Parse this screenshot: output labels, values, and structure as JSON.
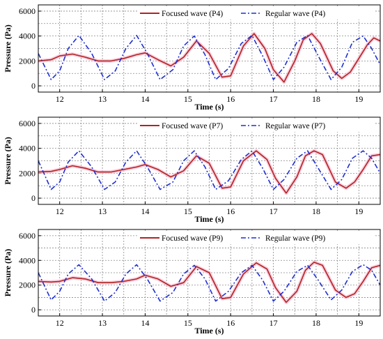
{
  "chart_data": [
    {
      "type": "line",
      "xlabel": "Time (s)",
      "ylabel": "Pressure (Pa)",
      "xlim": [
        11.5,
        19.5
      ],
      "ylim": [
        -500,
        6500
      ],
      "x_ticks": [
        12,
        13,
        14,
        15,
        16,
        17,
        18,
        19
      ],
      "y_ticks": [
        0,
        2000,
        4000,
        6000
      ],
      "grid": true,
      "legend_position": "top-right",
      "series": [
        {
          "name": "Focused wave (P4)",
          "color": "#b22222",
          "style": "solid",
          "x": [
            11.5,
            11.8,
            12.0,
            12.3,
            12.6,
            12.9,
            13.2,
            13.5,
            13.8,
            14.0,
            14.3,
            14.6,
            14.9,
            15.2,
            15.5,
            15.8,
            16.0,
            16.3,
            16.55,
            16.8,
            17.0,
            17.25,
            17.5,
            17.7,
            17.9,
            18.1,
            18.4,
            18.6,
            18.8,
            19.0,
            19.2,
            19.35,
            19.5
          ],
          "values": [
            2000,
            2100,
            2400,
            2550,
            2300,
            2000,
            2000,
            2200,
            2500,
            2650,
            2100,
            1600,
            2300,
            3600,
            2600,
            700,
            800,
            3200,
            4200,
            3000,
            1300,
            300,
            2000,
            3700,
            4200,
            3400,
            1200,
            600,
            1100,
            2200,
            3300,
            3850,
            3600
          ]
        },
        {
          "name": "Regular wave (P4)",
          "color": "#1f2fd0",
          "style": "dashdot",
          "x": [
            11.5,
            11.8,
            12.0,
            12.2,
            12.45,
            12.75,
            13.05,
            13.3,
            13.55,
            13.8,
            14.05,
            14.35,
            14.65,
            14.9,
            15.15,
            15.4,
            15.65,
            15.95,
            16.25,
            16.5,
            16.75,
            17.0,
            17.25,
            17.55,
            17.8,
            18.05,
            18.35,
            18.6,
            18.85,
            19.1,
            19.3,
            19.5
          ],
          "values": [
            2600,
            500,
            1200,
            3000,
            4050,
            2600,
            500,
            1200,
            3000,
            4050,
            2600,
            500,
            1300,
            3200,
            4000,
            2500,
            500,
            1400,
            3400,
            4050,
            2400,
            500,
            1500,
            3500,
            4050,
            2400,
            500,
            1500,
            3500,
            4000,
            3000,
            1700
          ]
        }
      ]
    },
    {
      "type": "line",
      "xlabel": "Time (s)",
      "ylabel": "Pressure (Pa)",
      "xlim": [
        11.5,
        19.5
      ],
      "ylim": [
        -500,
        6500
      ],
      "x_ticks": [
        12,
        13,
        14,
        15,
        16,
        17,
        18,
        19
      ],
      "y_ticks": [
        0,
        2000,
        4000,
        6000
      ],
      "grid": true,
      "legend_position": "top-right",
      "series": [
        {
          "name": "Focused wave (P7)",
          "color": "#b22222",
          "style": "solid",
          "x": [
            11.5,
            11.8,
            12.0,
            12.3,
            12.6,
            12.9,
            13.2,
            13.5,
            13.8,
            14.0,
            14.3,
            14.6,
            14.9,
            15.2,
            15.5,
            15.8,
            16.0,
            16.3,
            16.6,
            16.85,
            17.05,
            17.3,
            17.55,
            17.75,
            17.95,
            18.15,
            18.45,
            18.7,
            18.9,
            19.1,
            19.3,
            19.5
          ],
          "values": [
            2100,
            2150,
            2300,
            2600,
            2400,
            2100,
            2100,
            2300,
            2500,
            2700,
            2300,
            1700,
            2200,
            3400,
            2800,
            800,
            900,
            3000,
            3800,
            3100,
            1600,
            400,
            1700,
            3400,
            3800,
            3500,
            1300,
            800,
            1300,
            2300,
            3400,
            3500
          ]
        },
        {
          "name": "Regular wave (P7)",
          "color": "#1f2fd0",
          "style": "dashdot",
          "x": [
            11.5,
            11.8,
            12.0,
            12.2,
            12.45,
            12.75,
            13.05,
            13.3,
            13.55,
            13.8,
            14.05,
            14.35,
            14.65,
            14.9,
            15.15,
            15.4,
            15.65,
            15.95,
            16.25,
            16.5,
            16.75,
            17.0,
            17.25,
            17.55,
            17.8,
            18.05,
            18.35,
            18.6,
            18.85,
            19.1,
            19.3,
            19.5
          ],
          "values": [
            3000,
            700,
            1300,
            2900,
            3800,
            2500,
            700,
            1300,
            2900,
            3800,
            2500,
            700,
            1300,
            3000,
            3800,
            2500,
            700,
            1400,
            3100,
            3800,
            2400,
            700,
            1500,
            3200,
            3800,
            2400,
            700,
            1500,
            3200,
            3800,
            3200,
            2000
          ]
        }
      ]
    },
    {
      "type": "line",
      "xlabel": "Time (s)",
      "ylabel": "Pressure (Pa)",
      "xlim": [
        11.5,
        19.5
      ],
      "ylim": [
        -500,
        6500
      ],
      "x_ticks": [
        12,
        13,
        14,
        15,
        16,
        17,
        18,
        19
      ],
      "y_ticks": [
        0,
        2000,
        4000,
        6000
      ],
      "grid": true,
      "legend_position": "top-right",
      "series": [
        {
          "name": "Focused wave (P9)",
          "color": "#b22222",
          "style": "solid",
          "x": [
            11.5,
            11.8,
            12.0,
            12.3,
            12.6,
            12.9,
            13.2,
            13.5,
            13.8,
            14.0,
            14.3,
            14.6,
            14.9,
            15.2,
            15.5,
            15.8,
            16.0,
            16.3,
            16.6,
            16.85,
            17.05,
            17.3,
            17.55,
            17.75,
            17.95,
            18.15,
            18.45,
            18.7,
            18.9,
            19.1,
            19.3,
            19.5
          ],
          "values": [
            2300,
            2250,
            2300,
            2600,
            2500,
            2200,
            2200,
            2300,
            2500,
            2800,
            2500,
            1900,
            2200,
            3500,
            3000,
            900,
            1000,
            2900,
            3800,
            3300,
            1800,
            600,
            1500,
            3200,
            3850,
            3600,
            1600,
            1000,
            1300,
            2300,
            3400,
            3600
          ]
        },
        {
          "name": "Regular wave (P9)",
          "color": "#1f2fd0",
          "style": "dashdot",
          "x": [
            11.5,
            11.8,
            12.0,
            12.2,
            12.45,
            12.75,
            13.05,
            13.3,
            13.55,
            13.8,
            14.05,
            14.35,
            14.65,
            14.9,
            15.15,
            15.4,
            15.65,
            15.95,
            16.25,
            16.5,
            16.75,
            17.0,
            17.25,
            17.55,
            17.8,
            18.05,
            18.35,
            18.6,
            18.85,
            19.1,
            19.3,
            19.5
          ],
          "values": [
            3000,
            800,
            1500,
            2900,
            3650,
            2500,
            700,
            1400,
            2900,
            3650,
            2500,
            700,
            1400,
            2900,
            3600,
            2500,
            700,
            1500,
            3000,
            3600,
            2400,
            700,
            1500,
            3100,
            3600,
            2400,
            800,
            1600,
            3100,
            3650,
            3200,
            2000
          ]
        }
      ]
    }
  ]
}
